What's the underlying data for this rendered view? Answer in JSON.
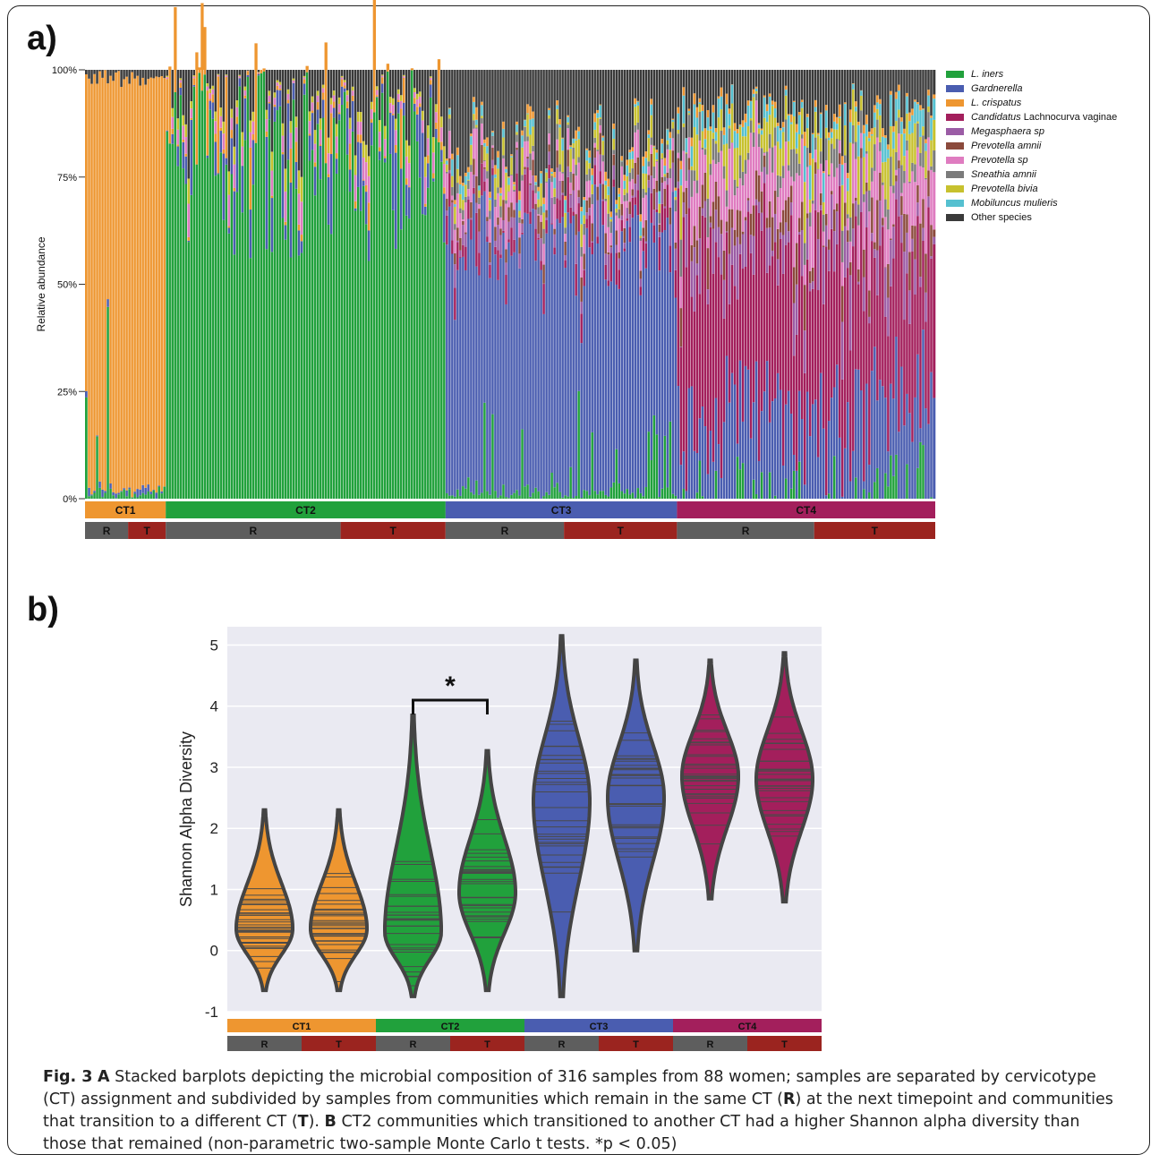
{
  "panel_a_label": "a)",
  "panel_b_label": "b)",
  "caption": {
    "fig_label": "Fig. 3",
    "part_a_letter": "A",
    "part_a_text": " Stacked barplots depicting the microbial composition of 316 samples from 88 women; samples are separated by cervicotype (CT) assignment and subdivided by samples from communities which remain in the same CT (",
    "r_bold": "R",
    "part_a_text2": ") at the next timepoint and communities that transition to a different CT (",
    "t_bold": "T",
    "part_a_text3": "). ",
    "part_b_letter": "B",
    "part_b_text": " CT2 communities which transitioned to another CT had a higher Shannon alpha diversity than those that remained (non-parametric two-sample Monte Carlo t tests. *p < 0.05)"
  },
  "chart_data": [
    {
      "type": "bar",
      "stacked": true,
      "ylabel": "Relative abundance",
      "yticks": [
        "0%",
        "25%",
        "50%",
        "75%",
        "100%"
      ],
      "ylim": [
        0,
        1
      ],
      "n_samples": 316,
      "legend": [
        {
          "label": "L. iners",
          "italic_prefix": "L. iners",
          "plain_suffix": "",
          "color": "#21a13c"
        },
        {
          "label": "Gardnerella",
          "italic_prefix": "Gardnerella",
          "plain_suffix": "",
          "color": "#4a5db0"
        },
        {
          "label": "L. crispatus",
          "italic_prefix": "L. crispatus",
          "plain_suffix": "",
          "color": "#ee9630"
        },
        {
          "label": "Candidatus Lachnocurva vaginae",
          "italic_prefix": "Candidatus",
          "plain_suffix": " Lachnocurva vaginae",
          "color": "#a31f5c"
        },
        {
          "label": "Megasphaera sp",
          "italic_prefix": "Megasphaera sp",
          "plain_suffix": "",
          "color": "#9b5ca5"
        },
        {
          "label": "Prevotella amnii",
          "italic_prefix": "Prevotella amnii",
          "plain_suffix": "",
          "color": "#8b4a3c"
        },
        {
          "label": "Prevotella sp",
          "italic_prefix": "Prevotella sp",
          "plain_suffix": "",
          "color": "#df7cc0"
        },
        {
          "label": "Sneathia amnii",
          "italic_prefix": "Sneathia amnii",
          "plain_suffix": "",
          "color": "#7b7b7b"
        },
        {
          "label": "Prevotella bivia",
          "italic_prefix": "Prevotella bivia",
          "plain_suffix": "",
          "color": "#c7c12e"
        },
        {
          "label": "Mobiluncus mulieris",
          "italic_prefix": "Mobiluncus mulieris",
          "plain_suffix": "",
          "color": "#55c0d0"
        },
        {
          "label": "Other species",
          "italic_prefix": "",
          "plain_suffix": "Other species",
          "color": "#3a3a3a"
        }
      ],
      "groups": [
        {
          "name": "CT1",
          "color": "#ee9630",
          "samples": 30,
          "sub": [
            {
              "name": "R",
              "samples": 16
            },
            {
              "name": "T",
              "samples": 14
            }
          ]
        },
        {
          "name": "CT2",
          "color": "#21a13c",
          "samples": 104,
          "sub": [
            {
              "name": "R",
              "samples": 65
            },
            {
              "name": "T",
              "samples": 39
            }
          ]
        },
        {
          "name": "CT3",
          "color": "#4a5db0",
          "samples": 86,
          "sub": [
            {
              "name": "R",
              "samples": 44
            },
            {
              "name": "T",
              "samples": 42
            }
          ]
        },
        {
          "name": "CT4",
          "color": "#a31f5c",
          "samples": 96,
          "sub": [
            {
              "name": "R",
              "samples": 51
            },
            {
              "name": "T",
              "samples": 45
            }
          ]
        }
      ],
      "sub_colors": {
        "R": "#5e5e5e",
        "T": "#9b241f"
      }
    },
    {
      "type": "violin",
      "ylabel": "Shannon Alpha Diversity",
      "ylim": [
        -1,
        5.3
      ],
      "yticks": [
        -1,
        0,
        1,
        2,
        3,
        4,
        5
      ],
      "significance": {
        "between": [
          "CT2 R",
          "CT2 T"
        ],
        "label": "*"
      },
      "groups": [
        {
          "ct": "CT1",
          "sub": "R",
          "color": "#ee9630",
          "min": -0.65,
          "max": 2.3,
          "center": 0.35
        },
        {
          "ct": "CT1",
          "sub": "T",
          "color": "#ee9630",
          "min": -0.65,
          "max": 2.3,
          "center": 0.35
        },
        {
          "ct": "CT2",
          "sub": "R",
          "color": "#21a13c",
          "min": -0.75,
          "max": 3.85,
          "center": 0.3
        },
        {
          "ct": "CT2",
          "sub": "T",
          "color": "#21a13c",
          "min": -0.65,
          "max": 3.27,
          "center": 0.95
        },
        {
          "ct": "CT3",
          "sub": "R",
          "color": "#4a5db0",
          "min": -0.75,
          "max": 5.15,
          "center": 2.45
        },
        {
          "ct": "CT3",
          "sub": "T",
          "color": "#4a5db0",
          "min": 0.0,
          "max": 4.75,
          "center": 2.5
        },
        {
          "ct": "CT4",
          "sub": "R",
          "color": "#a31f5c",
          "min": 0.85,
          "max": 4.75,
          "center": 2.85
        },
        {
          "ct": "CT4",
          "sub": "T",
          "color": "#a31f5c",
          "min": 0.8,
          "max": 4.87,
          "center": 2.8
        }
      ],
      "ct_labels": [
        "CT1",
        "CT2",
        "CT3",
        "CT4"
      ],
      "sub_labels": [
        "R",
        "T",
        "R",
        "T",
        "R",
        "T",
        "R",
        "T"
      ]
    }
  ]
}
